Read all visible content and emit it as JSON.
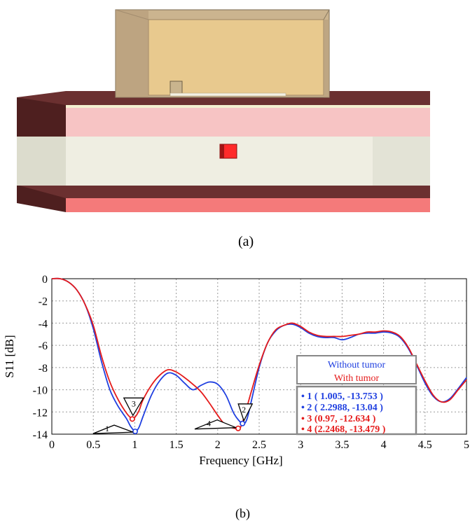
{
  "captions": {
    "a": "(a)",
    "b": "(b)"
  },
  "chart_data": {
    "type": "line",
    "xlabel": "Frequency [GHz]",
    "ylabel": "S11 [dB]",
    "xlim": [
      0,
      5
    ],
    "ylim": [
      -14,
      0
    ],
    "xticks": [
      0,
      0.5,
      1,
      1.5,
      2,
      2.5,
      3,
      3.5,
      4,
      4.5,
      5
    ],
    "xtick_labels": [
      "0",
      "0.5",
      "1",
      "1.5",
      "2",
      "2.5",
      "3",
      "3.5",
      "4",
      "4.5",
      "5"
    ],
    "yticks": [
      0,
      -2,
      -4,
      -6,
      -8,
      -10,
      -12,
      -14
    ],
    "ytick_labels": [
      "0",
      "-2",
      "-4",
      "-6",
      "-8",
      "-10",
      "-12",
      "-14"
    ],
    "grid": true,
    "legend_position": "lower-right",
    "series": [
      {
        "name": "Without tumor",
        "color": "#1f3fe0",
        "x": [
          0,
          0.1,
          0.2,
          0.3,
          0.4,
          0.5,
          0.6,
          0.7,
          0.8,
          0.9,
          0.95,
          1.005,
          1.05,
          1.1,
          1.2,
          1.3,
          1.4,
          1.5,
          1.6,
          1.7,
          1.8,
          1.9,
          2.0,
          2.1,
          2.2,
          2.2988,
          2.35,
          2.4,
          2.5,
          2.6,
          2.7,
          2.8,
          2.9,
          3.0,
          3.1,
          3.2,
          3.3,
          3.4,
          3.5,
          3.6,
          3.7,
          3.8,
          3.9,
          4.0,
          4.1,
          4.2,
          4.3,
          4.4,
          4.5,
          4.6,
          4.7,
          4.8,
          4.9,
          5.0
        ],
        "y": [
          0,
          0,
          -0.3,
          -1.0,
          -2.3,
          -4.5,
          -7.5,
          -10.0,
          -11.5,
          -12.6,
          -13.3,
          -13.75,
          -13.4,
          -12.4,
          -10.5,
          -9.2,
          -8.5,
          -8.7,
          -9.4,
          -10.0,
          -9.6,
          -9.3,
          -9.5,
          -10.5,
          -12.2,
          -13.04,
          -12.7,
          -11.2,
          -8.0,
          -5.8,
          -4.7,
          -4.2,
          -4.1,
          -4.4,
          -4.9,
          -5.2,
          -5.3,
          -5.3,
          -5.5,
          -5.3,
          -5.0,
          -4.9,
          -4.9,
          -4.8,
          -4.9,
          -5.3,
          -6.3,
          -7.8,
          -9.4,
          -10.6,
          -11.1,
          -10.8,
          -9.9,
          -8.9
        ]
      },
      {
        "name": "With tumor",
        "color": "#e51b1b",
        "x": [
          0,
          0.1,
          0.2,
          0.3,
          0.4,
          0.5,
          0.6,
          0.7,
          0.8,
          0.9,
          0.97,
          1.0,
          1.05,
          1.1,
          1.2,
          1.3,
          1.4,
          1.5,
          1.6,
          1.7,
          1.8,
          1.9,
          2.0,
          2.1,
          2.2468,
          2.3,
          2.4,
          2.5,
          2.6,
          2.7,
          2.8,
          2.9,
          3.0,
          3.1,
          3.2,
          3.3,
          3.4,
          3.5,
          3.6,
          3.7,
          3.8,
          3.9,
          4.0,
          4.1,
          4.2,
          4.3,
          4.4,
          4.5,
          4.6,
          4.7,
          4.8,
          4.9,
          5.0
        ],
        "y": [
          0,
          0,
          -0.3,
          -1.0,
          -2.3,
          -4.2,
          -7.0,
          -9.3,
          -10.9,
          -12.1,
          -12.63,
          -12.5,
          -11.9,
          -10.9,
          -9.6,
          -8.7,
          -8.2,
          -8.4,
          -8.9,
          -9.5,
          -10.2,
          -11.2,
          -12.3,
          -13.2,
          -13.48,
          -12.9,
          -10.3,
          -7.8,
          -5.8,
          -4.6,
          -4.2,
          -4.0,
          -4.3,
          -4.8,
          -5.1,
          -5.2,
          -5.2,
          -5.2,
          -5.1,
          -5.0,
          -4.8,
          -4.8,
          -4.7,
          -4.8,
          -5.2,
          -6.2,
          -7.7,
          -9.2,
          -10.5,
          -11.1,
          -10.9,
          -10.0,
          -9.1
        ]
      }
    ],
    "markers": [
      {
        "label": "1",
        "series": "Without tumor",
        "x": 1.005,
        "y": -13.753,
        "text": "1 ( 1.005, -13.753 )"
      },
      {
        "label": "2",
        "series": "Without tumor",
        "x": 2.2988,
        "y": -13.04,
        "text": "2 ( 2.2988, -13.04 )"
      },
      {
        "label": "3",
        "series": "With tumor",
        "x": 0.97,
        "y": -12.634,
        "text": "3 (0.97, -12.634 )"
      },
      {
        "label": "4",
        "series": "With tumor",
        "x": 2.2468,
        "y": -13.479,
        "text": "4 (2.2468, -13.479 )"
      }
    ]
  }
}
